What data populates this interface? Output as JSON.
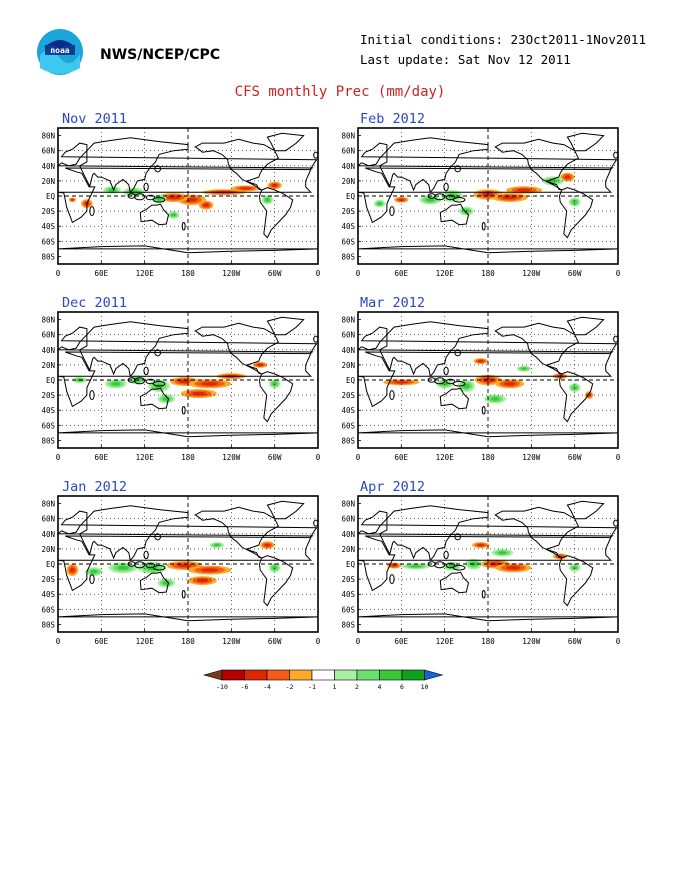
{
  "header": {
    "agency": "NWS/NCEP/CPC",
    "initial_conditions": "Initial conditions: 23Oct2011-1Nov2011",
    "last_update": "Last update: Sat Nov 12 2011",
    "title": "CFS monthly Prec (mm/day)"
  },
  "logo": {
    "icon": "noaa-logo-icon"
  },
  "map_axes": {
    "lat_labels": [
      "80N",
      "60N",
      "40N",
      "20N",
      "EQ",
      "20S",
      "40S",
      "60S",
      "80S"
    ],
    "lon_labels": [
      "0",
      "60E",
      "120E",
      "180",
      "120W",
      "60W",
      "0"
    ]
  },
  "panels": [
    {
      "id": "nov-2011",
      "title": "Nov 2011",
      "features": [
        [
          205,
          -12,
          10,
          6,
          "neg"
        ],
        [
          185,
          -5,
          20,
          7,
          "neg"
        ],
        [
          160,
          -2,
          22,
          6,
          "neg"
        ],
        [
          140,
          -4,
          10,
          6,
          "pos"
        ],
        [
          230,
          5,
          30,
          4,
          "neg"
        ],
        [
          260,
          10,
          20,
          4,
          "neg"
        ],
        [
          300,
          14,
          10,
          5,
          "neg"
        ],
        [
          105,
          5,
          15,
          6,
          "pos"
        ],
        [
          75,
          8,
          12,
          5,
          "pos"
        ],
        [
          40,
          -10,
          8,
          6,
          "neg"
        ],
        [
          20,
          -5,
          5,
          3,
          "neg"
        ],
        [
          160,
          -25,
          8,
          5,
          "pos"
        ],
        [
          290,
          -5,
          8,
          6,
          "pos"
        ]
      ]
    },
    {
      "id": "dec-2011",
      "title": "Dec 2011",
      "features": [
        [
          175,
          -2,
          20,
          6,
          "neg"
        ],
        [
          210,
          -5,
          30,
          6,
          "neg"
        ],
        [
          195,
          -18,
          25,
          6,
          "neg"
        ],
        [
          140,
          -8,
          15,
          8,
          "pos"
        ],
        [
          110,
          0,
          12,
          6,
          "pos"
        ],
        [
          80,
          -5,
          15,
          6,
          "pos"
        ],
        [
          150,
          -25,
          12,
          6,
          "pos"
        ],
        [
          240,
          5,
          20,
          4,
          "neg"
        ],
        [
          280,
          20,
          10,
          4,
          "neg"
        ],
        [
          300,
          -5,
          8,
          6,
          "pos"
        ],
        [
          30,
          0,
          10,
          4,
          "pos"
        ]
      ]
    },
    {
      "id": "jan-2012",
      "title": "Jan 2012",
      "features": [
        [
          175,
          -2,
          25,
          6,
          "neg"
        ],
        [
          210,
          -8,
          30,
          6,
          "neg"
        ],
        [
          200,
          -22,
          20,
          6,
          "neg"
        ],
        [
          130,
          -5,
          20,
          8,
          "pos"
        ],
        [
          90,
          -5,
          20,
          7,
          "pos"
        ],
        [
          50,
          -10,
          12,
          6,
          "pos"
        ],
        [
          20,
          -8,
          8,
          8,
          "neg"
        ],
        [
          150,
          -25,
          12,
          6,
          "pos"
        ],
        [
          290,
          25,
          10,
          5,
          "neg"
        ],
        [
          220,
          25,
          10,
          4,
          "pos"
        ],
        [
          300,
          -5,
          8,
          6,
          "pos"
        ]
      ]
    },
    {
      "id": "feb-2012",
      "title": "Feb 2012",
      "features": [
        [
          180,
          2,
          20,
          7,
          "neg"
        ],
        [
          210,
          -2,
          25,
          6,
          "neg"
        ],
        [
          230,
          8,
          25,
          5,
          "neg"
        ],
        [
          130,
          0,
          15,
          8,
          "pos"
        ],
        [
          100,
          -5,
          15,
          6,
          "pos"
        ],
        [
          150,
          -20,
          10,
          6,
          "pos"
        ],
        [
          290,
          25,
          10,
          6,
          "neg"
        ],
        [
          270,
          20,
          15,
          6,
          "pos"
        ],
        [
          60,
          -5,
          10,
          4,
          "neg"
        ],
        [
          30,
          -10,
          8,
          5,
          "pos"
        ],
        [
          300,
          -8,
          8,
          6,
          "pos"
        ]
      ]
    },
    {
      "id": "mar-2012",
      "title": "Mar 2012",
      "features": [
        [
          180,
          0,
          18,
          7,
          "neg"
        ],
        [
          210,
          -5,
          20,
          6,
          "neg"
        ],
        [
          150,
          -8,
          12,
          8,
          "pos"
        ],
        [
          120,
          -5,
          12,
          6,
          "pos"
        ],
        [
          60,
          -3,
          25,
          4,
          "neg"
        ],
        [
          190,
          -25,
          15,
          6,
          "pos"
        ],
        [
          280,
          5,
          10,
          4,
          "neg"
        ],
        [
          300,
          -10,
          8,
          6,
          "pos"
        ],
        [
          170,
          25,
          10,
          4,
          "neg"
        ],
        [
          320,
          -20,
          6,
          5,
          "neg"
        ],
        [
          230,
          15,
          10,
          4,
          "pos"
        ]
      ]
    },
    {
      "id": "apr-2012",
      "title": "Apr 2012",
      "features": [
        [
          190,
          0,
          20,
          6,
          "neg"
        ],
        [
          215,
          -5,
          25,
          6,
          "neg"
        ],
        [
          160,
          0,
          12,
          7,
          "pos"
        ],
        [
          130,
          -3,
          12,
          6,
          "pos"
        ],
        [
          80,
          -3,
          20,
          4,
          "pos"
        ],
        [
          200,
          15,
          15,
          5,
          "pos"
        ],
        [
          170,
          25,
          12,
          4,
          "neg"
        ],
        [
          280,
          10,
          10,
          4,
          "neg"
        ],
        [
          300,
          -5,
          8,
          5,
          "pos"
        ],
        [
          50,
          -2,
          10,
          4,
          "neg"
        ]
      ]
    }
  ],
  "legend": {
    "labels": [
      "-10",
      "-6",
      "-4",
      "-2",
      "-1",
      "1",
      "2",
      "4",
      "6",
      "10"
    ],
    "colors": [
      "#7a3a1c",
      "#b40000",
      "#dc2a00",
      "#f65c16",
      "#fbaa2a",
      "#ffffff",
      "#a8f0a0",
      "#6ae070",
      "#38c838",
      "#10a020",
      "#1464d2"
    ]
  },
  "colors": {
    "title": "#d02020",
    "panel_title": "#2a48c8",
    "land": "#000000"
  }
}
